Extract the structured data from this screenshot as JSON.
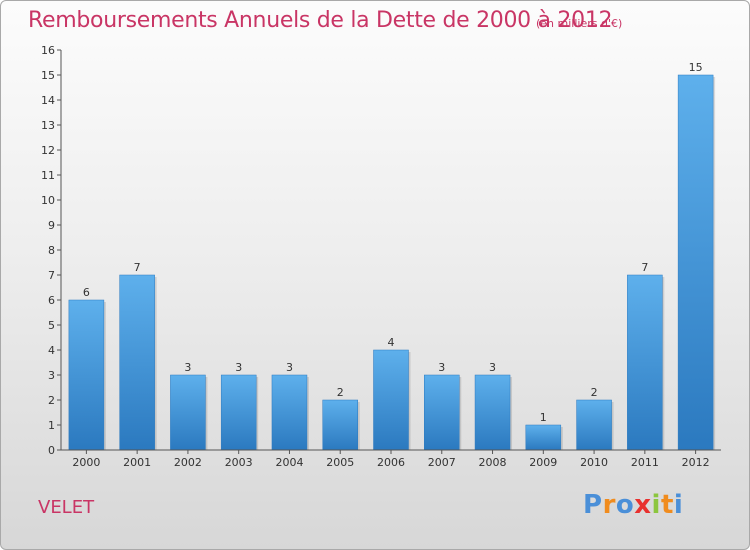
{
  "chart_data": {
    "type": "bar",
    "title": "Remboursements Annuels de la Dette de 2000 à 2012",
    "subtitle": "(en milliers d'€)",
    "xlabel": "",
    "ylabel": "",
    "categories": [
      "2000",
      "2001",
      "2002",
      "2003",
      "2004",
      "2005",
      "2006",
      "2007",
      "2008",
      "2009",
      "2010",
      "2011",
      "2012"
    ],
    "values": [
      6,
      7,
      3,
      3,
      3,
      2,
      4,
      3,
      3,
      1,
      2,
      7,
      15
    ],
    "ylim": [
      0,
      16
    ],
    "yticks": [
      "0",
      "1",
      "2",
      "3",
      "4",
      "5",
      "6",
      "7",
      "8",
      "9",
      "10",
      "11",
      "12",
      "13",
      "14",
      "15",
      "16"
    ],
    "grid": false,
    "legend": "none",
    "bar_color": "#3a8fd6"
  },
  "footer": {
    "commune": "VELET",
    "brand_letters": [
      "P",
      "r",
      "o",
      "x",
      "i",
      "t",
      "i"
    ],
    "brand_colors": [
      "#4a8fd8",
      "#f08c1e",
      "#4a8fd8",
      "#e8312f",
      "#8cc63f",
      "#f08c1e",
      "#4a8fd8"
    ]
  },
  "colors": {
    "accent": "#c93565"
  }
}
